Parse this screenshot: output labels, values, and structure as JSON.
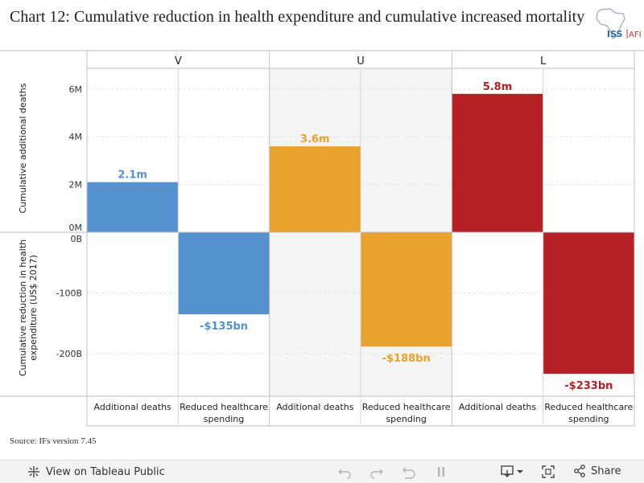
{
  "title": "Chart 12: Cumulative reduction in health expenditure and cumulative increased mortality",
  "logo": {
    "text_a": "ISS",
    "text_b": "AFI"
  },
  "source": "Source: IFs version 7.45",
  "toolbar": {
    "view_label": "View on Tableau Public",
    "share_label": "Share"
  },
  "chart_data": {
    "type": "bar",
    "panels": [
      "V",
      "U",
      "L"
    ],
    "categories": [
      "Additional deaths",
      "Reduced healthcare spending"
    ],
    "categories_display": [
      "Additional deaths",
      [
        "Reduced healthcare",
        "spending"
      ]
    ],
    "upper_axis": {
      "label": "Cumulative additional deaths",
      "unit": "M",
      "ylim": [
        0,
        6.5
      ],
      "ticks": [
        0,
        2,
        4,
        6
      ],
      "tick_labels": [
        "0M",
        "2M",
        "4M",
        "6M"
      ]
    },
    "lower_axis": {
      "label": [
        "Cumulative reduction in health",
        "expenditure (US$ 2017)"
      ],
      "unit": "B",
      "ylim": [
        -270,
        0
      ],
      "ticks": [
        0,
        -100,
        -200
      ],
      "tick_labels": [
        "0B",
        "-100B",
        "-200B"
      ]
    },
    "deaths": [
      2.1,
      3.6,
      5.8
    ],
    "deaths_labels": [
      "2.1m",
      "3.6m",
      "5.8m"
    ],
    "spending": [
      -135,
      -188,
      -233
    ],
    "spending_labels": [
      "-$135bn",
      "-$188bn",
      "-$233bn"
    ],
    "colors": [
      "#5590cf",
      "#e9a22d",
      "#b52025"
    ],
    "shaded_panel_color": "#f4f4f4",
    "grid": true
  }
}
